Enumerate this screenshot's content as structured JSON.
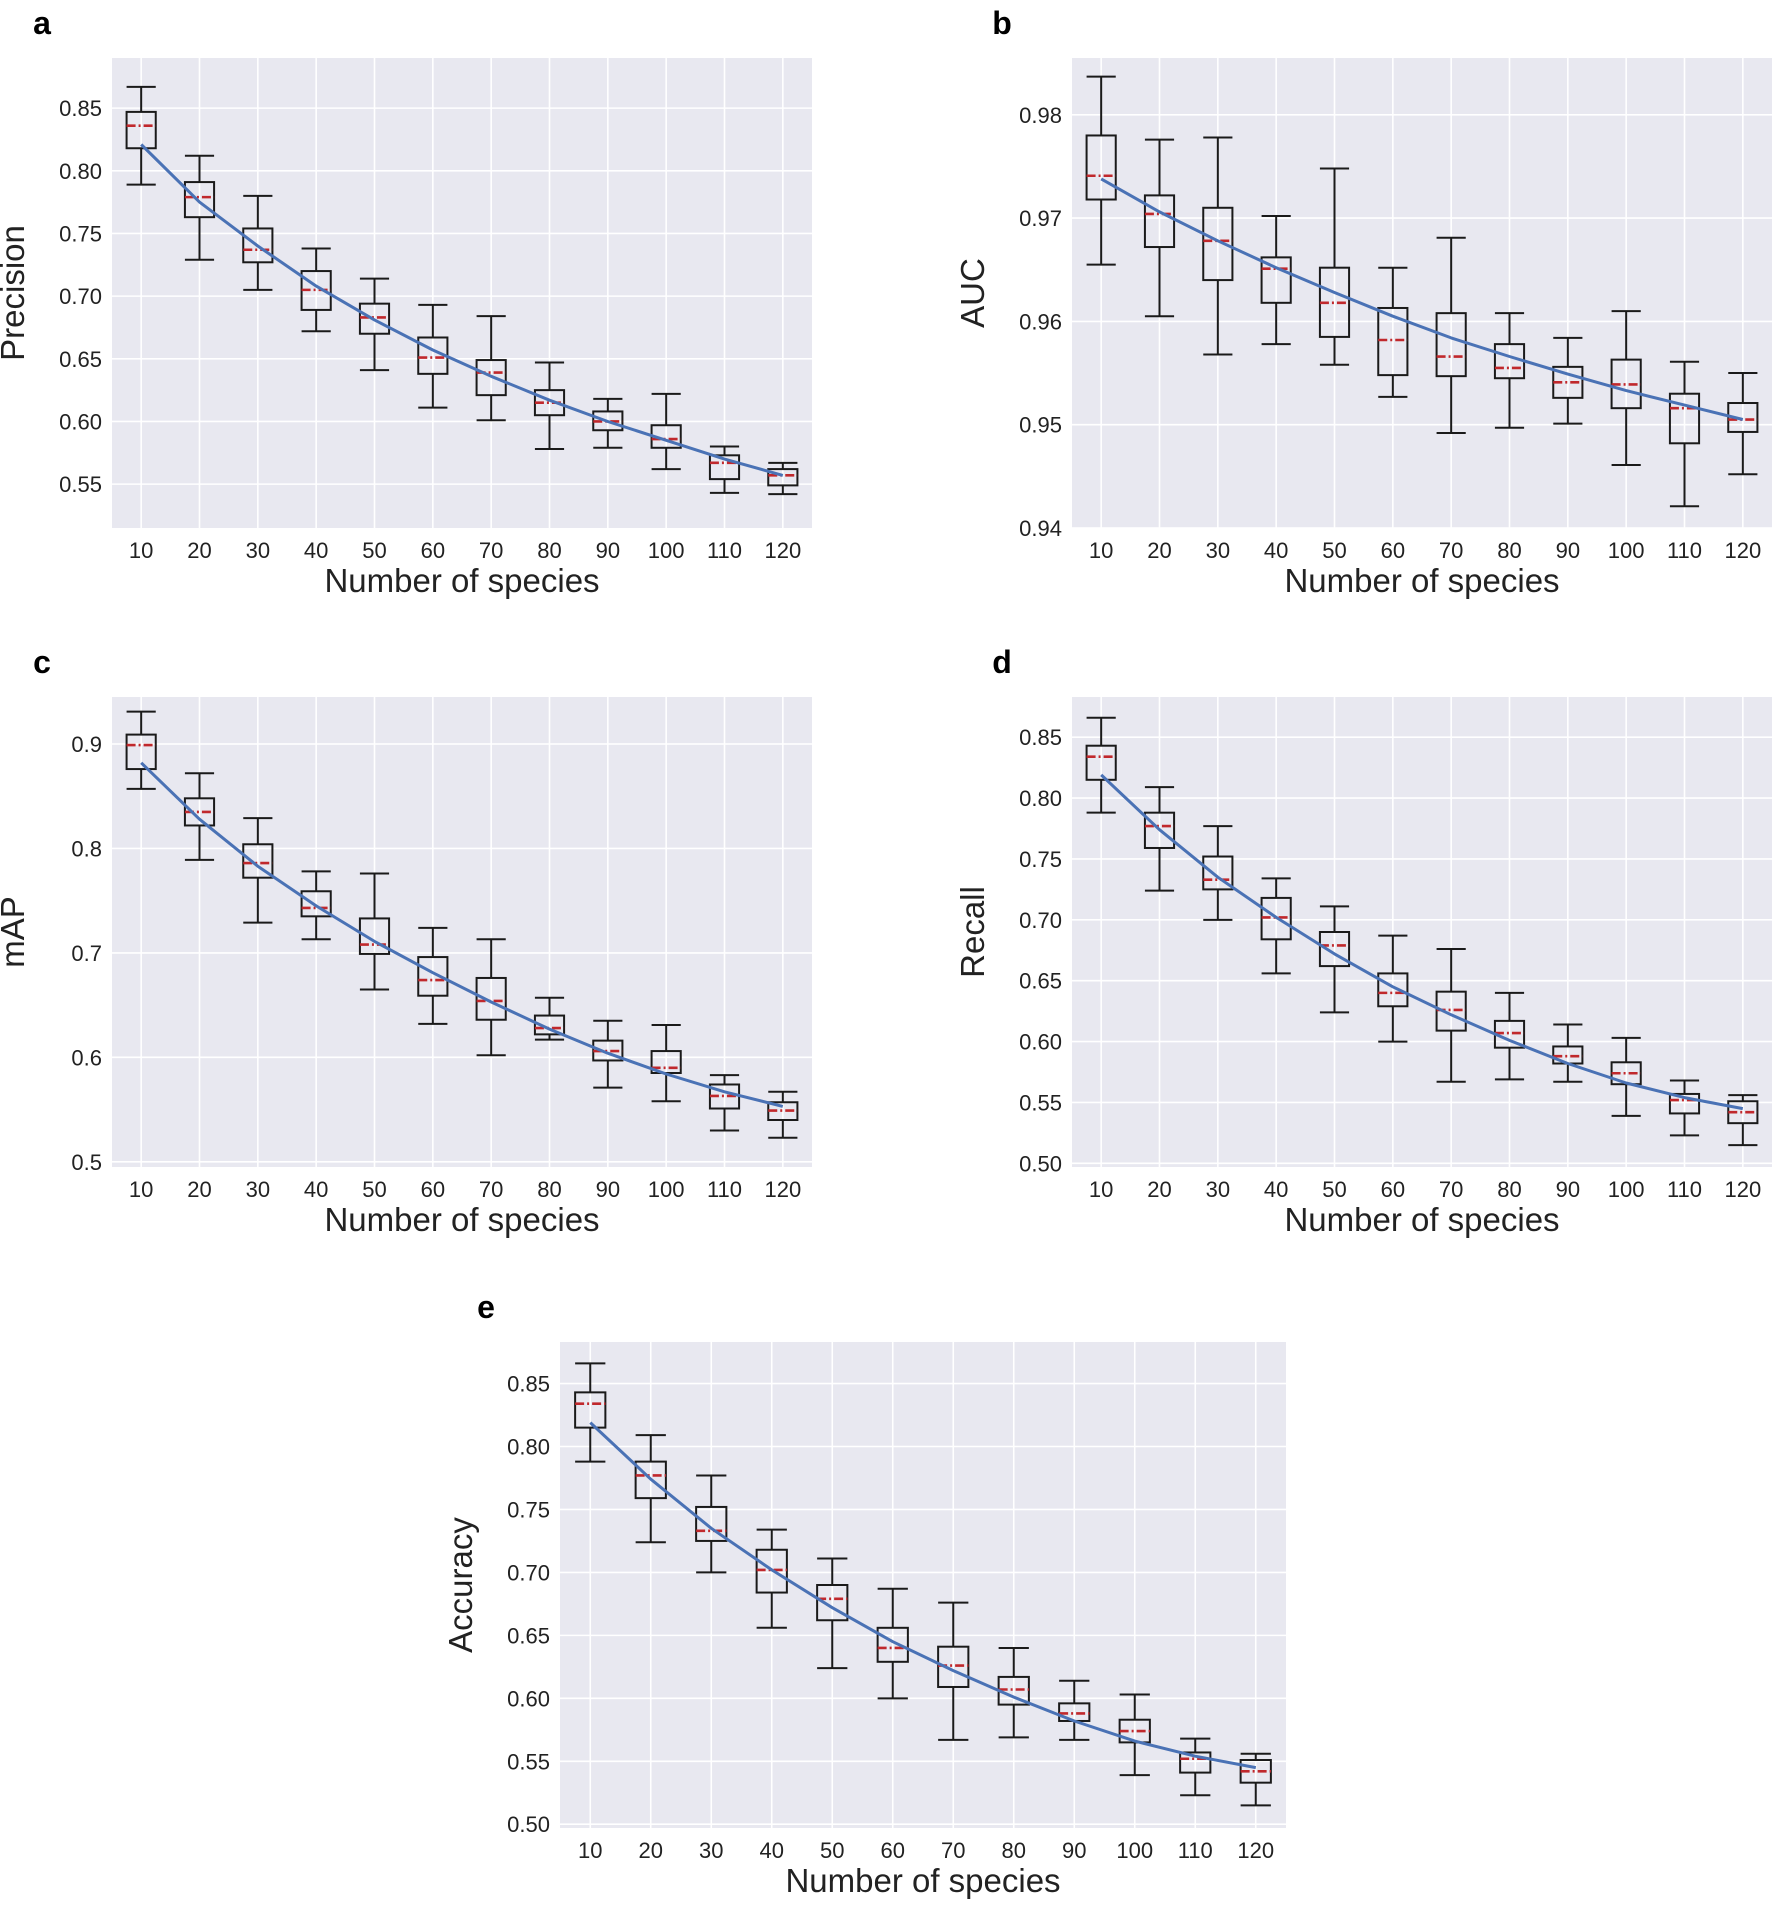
{
  "chart_data": [
    {
      "panel": "a",
      "type": "box",
      "ylabel": "Precision",
      "xlabel": "Number of species",
      "categories": [
        "10",
        "20",
        "30",
        "40",
        "50",
        "60",
        "70",
        "80",
        "90",
        "100",
        "110",
        "120"
      ],
      "ylim": [
        0.515,
        0.89
      ],
      "yticks": [
        0.55,
        0.6,
        0.65,
        0.7,
        0.75,
        0.8,
        0.85
      ],
      "yticklabels": [
        "0.55",
        "0.60",
        "0.65",
        "0.70",
        "0.75",
        "0.80",
        "0.85"
      ],
      "boxes": [
        {
          "min": 0.789,
          "q1": 0.818,
          "median": 0.836,
          "q3": 0.847,
          "max": 0.867
        },
        {
          "min": 0.729,
          "q1": 0.763,
          "median": 0.779,
          "q3": 0.791,
          "max": 0.812
        },
        {
          "min": 0.705,
          "q1": 0.727,
          "median": 0.737,
          "q3": 0.754,
          "max": 0.78
        },
        {
          "min": 0.672,
          "q1": 0.689,
          "median": 0.705,
          "q3": 0.72,
          "max": 0.738
        },
        {
          "min": 0.641,
          "q1": 0.67,
          "median": 0.683,
          "q3": 0.694,
          "max": 0.714
        },
        {
          "min": 0.611,
          "q1": 0.638,
          "median": 0.651,
          "q3": 0.667,
          "max": 0.693
        },
        {
          "min": 0.601,
          "q1": 0.621,
          "median": 0.639,
          "q3": 0.649,
          "max": 0.684
        },
        {
          "min": 0.578,
          "q1": 0.605,
          "median": 0.615,
          "q3": 0.625,
          "max": 0.647
        },
        {
          "min": 0.579,
          "q1": 0.593,
          "median": 0.6,
          "q3": 0.608,
          "max": 0.618
        },
        {
          "min": 0.562,
          "q1": 0.579,
          "median": 0.586,
          "q3": 0.597,
          "max": 0.622
        },
        {
          "min": 0.543,
          "q1": 0.554,
          "median": 0.567,
          "q3": 0.573,
          "max": 0.58
        },
        {
          "min": 0.542,
          "q1": 0.549,
          "median": 0.557,
          "q3": 0.562,
          "max": 0.567
        }
      ],
      "trend": [
        0.821,
        0.775,
        0.74,
        0.708,
        0.681,
        0.657,
        0.636,
        0.617,
        0.6,
        0.585,
        0.57,
        0.557
      ]
    },
    {
      "panel": "b",
      "type": "box",
      "ylabel": "AUC",
      "xlabel": "Number of species",
      "categories": [
        "10",
        "20",
        "30",
        "40",
        "50",
        "60",
        "70",
        "80",
        "90",
        "100",
        "110",
        "120"
      ],
      "ylim": [
        0.94,
        0.9855
      ],
      "yticks": [
        0.94,
        0.95,
        0.96,
        0.97,
        0.98
      ],
      "yticklabels": [
        "0.94",
        "0.95",
        "0.96",
        "0.97",
        "0.98"
      ],
      "boxes": [
        {
          "min": 0.9655,
          "q1": 0.9718,
          "median": 0.9741,
          "q3": 0.978,
          "max": 0.9837
        },
        {
          "min": 0.9605,
          "q1": 0.9672,
          "median": 0.9704,
          "q3": 0.9722,
          "max": 0.9776
        },
        {
          "min": 0.9568,
          "q1": 0.964,
          "median": 0.9678,
          "q3": 0.971,
          "max": 0.9778
        },
        {
          "min": 0.9578,
          "q1": 0.9618,
          "median": 0.9651,
          "q3": 0.9662,
          "max": 0.9702
        },
        {
          "min": 0.9558,
          "q1": 0.9585,
          "median": 0.9618,
          "q3": 0.9652,
          "max": 0.9748
        },
        {
          "min": 0.9527,
          "q1": 0.9548,
          "median": 0.9582,
          "q3": 0.9613,
          "max": 0.9652
        },
        {
          "min": 0.9492,
          "q1": 0.9547,
          "median": 0.9566,
          "q3": 0.9608,
          "max": 0.9681
        },
        {
          "min": 0.9497,
          "q1": 0.9545,
          "median": 0.9555,
          "q3": 0.9578,
          "max": 0.9608
        },
        {
          "min": 0.9501,
          "q1": 0.9526,
          "median": 0.9541,
          "q3": 0.9556,
          "max": 0.9584
        },
        {
          "min": 0.9461,
          "q1": 0.9516,
          "median": 0.9539,
          "q3": 0.9563,
          "max": 0.961
        },
        {
          "min": 0.9421,
          "q1": 0.9482,
          "median": 0.9516,
          "q3": 0.953,
          "max": 0.9561
        },
        {
          "min": 0.9452,
          "q1": 0.9493,
          "median": 0.9505,
          "q3": 0.9521,
          "max": 0.955
        }
      ],
      "trend": [
        0.9738,
        0.9706,
        0.9678,
        0.9652,
        0.9628,
        0.9605,
        0.9584,
        0.9566,
        0.9549,
        0.9533,
        0.9519,
        0.9505
      ]
    },
    {
      "panel": "c",
      "type": "box",
      "ylabel": "mAP",
      "xlabel": "Number of species",
      "categories": [
        "10",
        "20",
        "30",
        "40",
        "50",
        "60",
        "70",
        "80",
        "90",
        "100",
        "110",
        "120"
      ],
      "ylim": [
        0.495,
        0.945
      ],
      "yticks": [
        0.5,
        0.6,
        0.7,
        0.8,
        0.9
      ],
      "yticklabels": [
        "0.5",
        "0.6",
        "0.7",
        "0.8",
        "0.9"
      ],
      "boxes": [
        {
          "min": 0.857,
          "q1": 0.876,
          "median": 0.899,
          "q3": 0.909,
          "max": 0.931
        },
        {
          "min": 0.789,
          "q1": 0.822,
          "median": 0.835,
          "q3": 0.848,
          "max": 0.872
        },
        {
          "min": 0.729,
          "q1": 0.772,
          "median": 0.786,
          "q3": 0.804,
          "max": 0.829
        },
        {
          "min": 0.713,
          "q1": 0.735,
          "median": 0.743,
          "q3": 0.759,
          "max": 0.778
        },
        {
          "min": 0.665,
          "q1": 0.699,
          "median": 0.708,
          "q3": 0.733,
          "max": 0.776
        },
        {
          "min": 0.632,
          "q1": 0.659,
          "median": 0.674,
          "q3": 0.696,
          "max": 0.724
        },
        {
          "min": 0.602,
          "q1": 0.636,
          "median": 0.654,
          "q3": 0.676,
          "max": 0.713
        },
        {
          "min": 0.617,
          "q1": 0.622,
          "median": 0.628,
          "q3": 0.64,
          "max": 0.657
        },
        {
          "min": 0.571,
          "q1": 0.597,
          "median": 0.606,
          "q3": 0.616,
          "max": 0.635
        },
        {
          "min": 0.558,
          "q1": 0.585,
          "median": 0.59,
          "q3": 0.606,
          "max": 0.631
        },
        {
          "min": 0.53,
          "q1": 0.551,
          "median": 0.563,
          "q3": 0.574,
          "max": 0.583
        },
        {
          "min": 0.523,
          "q1": 0.54,
          "median": 0.549,
          "q3": 0.557,
          "max": 0.567
        }
      ],
      "trend": [
        0.882,
        0.828,
        0.783,
        0.745,
        0.711,
        0.681,
        0.653,
        0.627,
        0.604,
        0.584,
        0.567,
        0.553
      ]
    },
    {
      "panel": "d",
      "type": "box",
      "ylabel": "Recall",
      "xlabel": "Number of species",
      "categories": [
        "10",
        "20",
        "30",
        "40",
        "50",
        "60",
        "70",
        "80",
        "90",
        "100",
        "110",
        "120"
      ],
      "ylim": [
        0.497,
        0.883
      ],
      "yticks": [
        0.5,
        0.55,
        0.6,
        0.65,
        0.7,
        0.75,
        0.8,
        0.85
      ],
      "yticklabels": [
        "0.50",
        "0.55",
        "0.60",
        "0.65",
        "0.70",
        "0.75",
        "0.80",
        "0.85"
      ],
      "boxes": [
        {
          "min": 0.788,
          "q1": 0.815,
          "median": 0.834,
          "q3": 0.843,
          "max": 0.866
        },
        {
          "min": 0.724,
          "q1": 0.759,
          "median": 0.777,
          "q3": 0.788,
          "max": 0.809
        },
        {
          "min": 0.7,
          "q1": 0.725,
          "median": 0.733,
          "q3": 0.752,
          "max": 0.777
        },
        {
          "min": 0.656,
          "q1": 0.684,
          "median": 0.702,
          "q3": 0.718,
          "max": 0.734
        },
        {
          "min": 0.624,
          "q1": 0.662,
          "median": 0.679,
          "q3": 0.69,
          "max": 0.711
        },
        {
          "min": 0.6,
          "q1": 0.629,
          "median": 0.64,
          "q3": 0.656,
          "max": 0.687
        },
        {
          "min": 0.567,
          "q1": 0.609,
          "median": 0.626,
          "q3": 0.641,
          "max": 0.676
        },
        {
          "min": 0.569,
          "q1": 0.595,
          "median": 0.607,
          "q3": 0.617,
          "max": 0.64
        },
        {
          "min": 0.567,
          "q1": 0.582,
          "median": 0.588,
          "q3": 0.596,
          "max": 0.614
        },
        {
          "min": 0.539,
          "q1": 0.565,
          "median": 0.574,
          "q3": 0.583,
          "max": 0.603
        },
        {
          "min": 0.523,
          "q1": 0.541,
          "median": 0.552,
          "q3": 0.557,
          "max": 0.568
        },
        {
          "min": 0.515,
          "q1": 0.533,
          "median": 0.542,
          "q3": 0.551,
          "max": 0.556
        }
      ],
      "trend": [
        0.819,
        0.774,
        0.735,
        0.702,
        0.672,
        0.645,
        0.622,
        0.601,
        0.582,
        0.566,
        0.554,
        0.545
      ]
    },
    {
      "panel": "e",
      "type": "box",
      "ylabel": "Accuracy",
      "xlabel": "Number of species",
      "categories": [
        "10",
        "20",
        "30",
        "40",
        "50",
        "60",
        "70",
        "80",
        "90",
        "100",
        "110",
        "120"
      ],
      "ylim": [
        0.497,
        0.883
      ],
      "yticks": [
        0.5,
        0.55,
        0.6,
        0.65,
        0.7,
        0.75,
        0.8,
        0.85
      ],
      "yticklabels": [
        "0.50",
        "0.55",
        "0.60",
        "0.65",
        "0.70",
        "0.75",
        "0.80",
        "0.85"
      ],
      "boxes": [
        {
          "min": 0.788,
          "q1": 0.815,
          "median": 0.834,
          "q3": 0.843,
          "max": 0.866
        },
        {
          "min": 0.724,
          "q1": 0.759,
          "median": 0.777,
          "q3": 0.788,
          "max": 0.809
        },
        {
          "min": 0.7,
          "q1": 0.725,
          "median": 0.733,
          "q3": 0.752,
          "max": 0.777
        },
        {
          "min": 0.656,
          "q1": 0.684,
          "median": 0.702,
          "q3": 0.718,
          "max": 0.734
        },
        {
          "min": 0.624,
          "q1": 0.662,
          "median": 0.679,
          "q3": 0.69,
          "max": 0.711
        },
        {
          "min": 0.6,
          "q1": 0.629,
          "median": 0.64,
          "q3": 0.656,
          "max": 0.687
        },
        {
          "min": 0.567,
          "q1": 0.609,
          "median": 0.626,
          "q3": 0.641,
          "max": 0.676
        },
        {
          "min": 0.569,
          "q1": 0.595,
          "median": 0.607,
          "q3": 0.617,
          "max": 0.64
        },
        {
          "min": 0.567,
          "q1": 0.582,
          "median": 0.588,
          "q3": 0.596,
          "max": 0.614
        },
        {
          "min": 0.539,
          "q1": 0.565,
          "median": 0.574,
          "q3": 0.583,
          "max": 0.603
        },
        {
          "min": 0.523,
          "q1": 0.541,
          "median": 0.552,
          "q3": 0.557,
          "max": 0.568
        },
        {
          "min": 0.515,
          "q1": 0.533,
          "median": 0.542,
          "q3": 0.551,
          "max": 0.556
        }
      ],
      "trend": [
        0.819,
        0.774,
        0.735,
        0.702,
        0.672,
        0.645,
        0.622,
        0.601,
        0.582,
        0.566,
        0.554,
        0.545
      ]
    }
  ],
  "colors": {
    "plot_background": "#e8e8f0",
    "grid": "#ffffff",
    "box_edge": "#1a1a1a",
    "median": "#c0282c",
    "trend": "#4a72b5"
  }
}
